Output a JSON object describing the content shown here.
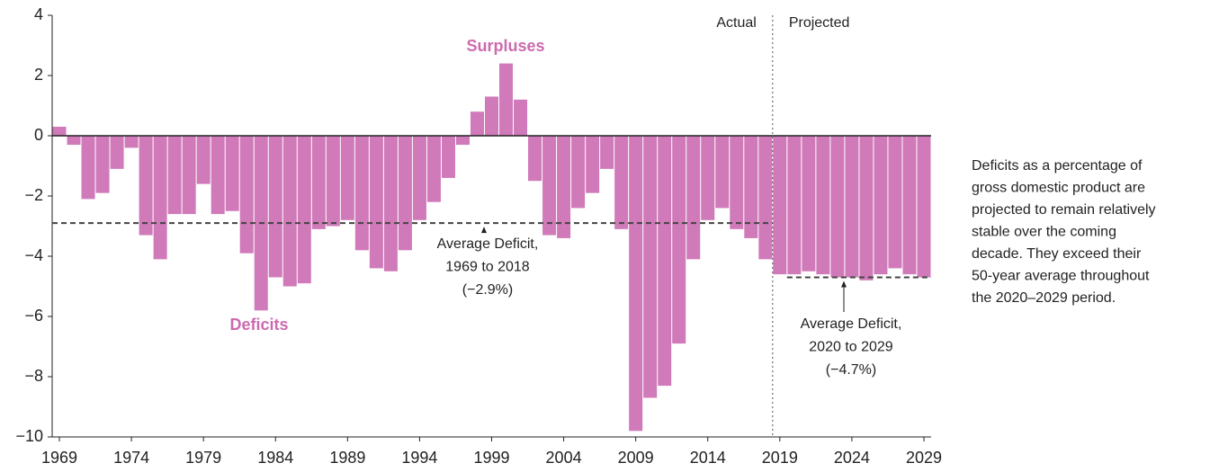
{
  "chart_data": {
    "type": "bar",
    "x": [
      1969,
      1970,
      1971,
      1972,
      1973,
      1974,
      1975,
      1976,
      1977,
      1978,
      1979,
      1980,
      1981,
      1982,
      1983,
      1984,
      1985,
      1986,
      1987,
      1988,
      1989,
      1990,
      1991,
      1992,
      1993,
      1994,
      1995,
      1996,
      1997,
      1998,
      1999,
      2000,
      2001,
      2002,
      2003,
      2004,
      2005,
      2006,
      2007,
      2008,
      2009,
      2010,
      2011,
      2012,
      2013,
      2014,
      2015,
      2016,
      2017,
      2018,
      2019,
      2020,
      2021,
      2022,
      2023,
      2024,
      2025,
      2026,
      2027,
      2028,
      2029
    ],
    "values": [
      0.3,
      -0.3,
      -2.1,
      -1.9,
      -1.1,
      -0.4,
      -3.3,
      -4.1,
      -2.6,
      -2.6,
      -1.6,
      -2.6,
      -2.5,
      -3.9,
      -5.8,
      -4.7,
      -5.0,
      -4.9,
      -3.1,
      -3.0,
      -2.8,
      -3.8,
      -4.4,
      -4.5,
      -3.8,
      -2.8,
      -2.2,
      -1.4,
      -0.3,
      0.8,
      1.3,
      2.4,
      1.2,
      -1.5,
      -3.3,
      -3.4,
      -2.4,
      -1.9,
      -1.1,
      -3.1,
      -9.8,
      -8.7,
      -8.3,
      -6.9,
      -4.1,
      -2.8,
      -2.4,
      -3.1,
      -3.4,
      -4.1,
      -4.6,
      -4.6,
      -4.5,
      -4.6,
      -4.7,
      -4.7,
      -4.8,
      -4.6,
      -4.4,
      -4.6,
      -4.7
    ],
    "color": "#d07ab9",
    "xlim": [
      1968.5,
      2029.5
    ],
    "xticks": [
      1969,
      1974,
      1979,
      1984,
      1989,
      1994,
      1999,
      2004,
      2009,
      2014,
      2019,
      2024,
      2029
    ],
    "ylim": [
      -10,
      4
    ],
    "yticks": [
      {
        "value": -10,
        "label": "−10"
      },
      {
        "value": -8,
        "label": "−8"
      },
      {
        "value": -6,
        "label": "−6"
      },
      {
        "value": -4,
        "label": "−4"
      },
      {
        "value": -2,
        "label": "−2"
      },
      0,
      2,
      4
    ],
    "divider": {
      "x": 2018.5,
      "left_label": "Actual",
      "right_label": "Projected"
    },
    "labels": [
      "Surpluses",
      "Deficits"
    ],
    "averages": [
      {
        "value": -2.9,
        "from": 1969,
        "to": 2018,
        "text": [
          "Average Deficit,",
          "1969 to 2018",
          "(−2.9%)"
        ]
      },
      {
        "value": -4.7,
        "from": 2020,
        "to": 2029,
        "text": [
          "Average Deficit,",
          "2020 to 2029",
          "(−4.7%)"
        ]
      }
    ],
    "note": [
      "Deficits as a percentage of",
      "gross domestic product are",
      "projected to remain relatively",
      "stable over the coming",
      "decade. They exceed their",
      "50-year average throughout",
      "the 2020–2029 period."
    ]
  }
}
